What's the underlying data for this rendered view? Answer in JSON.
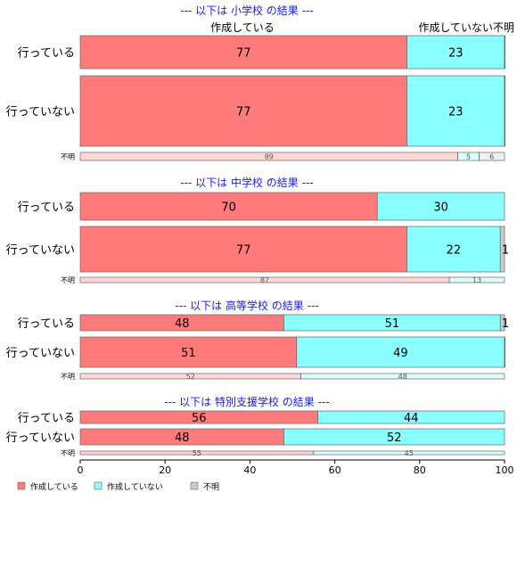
{
  "chart_data": {
    "type": "bar",
    "orientation": "horizontal",
    "stacked": true,
    "normalized": true,
    "xlim": [
      0,
      100
    ],
    "xticks": [
      "0",
      "20",
      "40",
      "60",
      "80",
      "100"
    ],
    "legend": {
      "placement": "bottom-left",
      "items": [
        {
          "name": "作成している",
          "color": "#ff7b7b"
        },
        {
          "name": "作成していない",
          "color": "#89ffff"
        },
        {
          "name": "不明",
          "color": "#cccccc"
        }
      ]
    },
    "panels": [
      {
        "title": "--- 以下は 小学校 の結果 ---",
        "column_labels": [
          "作成している",
          "作成していない",
          "不明"
        ],
        "rows": [
          {
            "label": "行っている",
            "values": [
              77,
              23,
              0.5
            ],
            "labels": [
              "77",
              "23",
              ""
            ]
          },
          {
            "label": "行っていない",
            "values": [
              77,
              23,
              0.2
            ],
            "labels": [
              "77",
              "23",
              ""
            ]
          },
          {
            "label": "不明",
            "values": [
              89,
              5,
              6
            ],
            "labels": [
              "89",
              "5",
              "6"
            ]
          }
        ]
      },
      {
        "title": "--- 以下は 中学校 の結果 ---",
        "rows": [
          {
            "label": "行っている",
            "values": [
              70,
              30,
              0
            ],
            "labels": [
              "70",
              "30",
              ""
            ]
          },
          {
            "label": "行っていない",
            "values": [
              77,
              22,
              1
            ],
            "labels": [
              "77",
              "22",
              "1"
            ]
          },
          {
            "label": "不明",
            "values": [
              87,
              13,
              0
            ],
            "labels": [
              "87",
              "13",
              ""
            ]
          }
        ]
      },
      {
        "title": "--- 以下は 高等学校 の結果 ---",
        "rows": [
          {
            "label": "行っている",
            "values": [
              48,
              51,
              1
            ],
            "labels": [
              "48",
              "51",
              "1"
            ]
          },
          {
            "label": "行っていない",
            "values": [
              51,
              49,
              0.4
            ],
            "labels": [
              "51",
              "49",
              ""
            ]
          },
          {
            "label": "不明",
            "values": [
              52,
              48,
              0
            ],
            "labels": [
              "52",
              "48",
              ""
            ]
          }
        ]
      },
      {
        "title": "--- 以下は 特別支援学校 の結果 ---",
        "rows": [
          {
            "label": "行っている",
            "values": [
              56,
              44,
              0
            ],
            "labels": [
              "56",
              "44",
              ""
            ]
          },
          {
            "label": "行っていない",
            "values": [
              48,
              52,
              0
            ],
            "labels": [
              "48",
              "52",
              ""
            ]
          },
          {
            "label": "不明",
            "values": [
              55,
              45,
              0
            ],
            "labels": [
              "55",
              "45",
              ""
            ]
          }
        ]
      }
    ]
  }
}
